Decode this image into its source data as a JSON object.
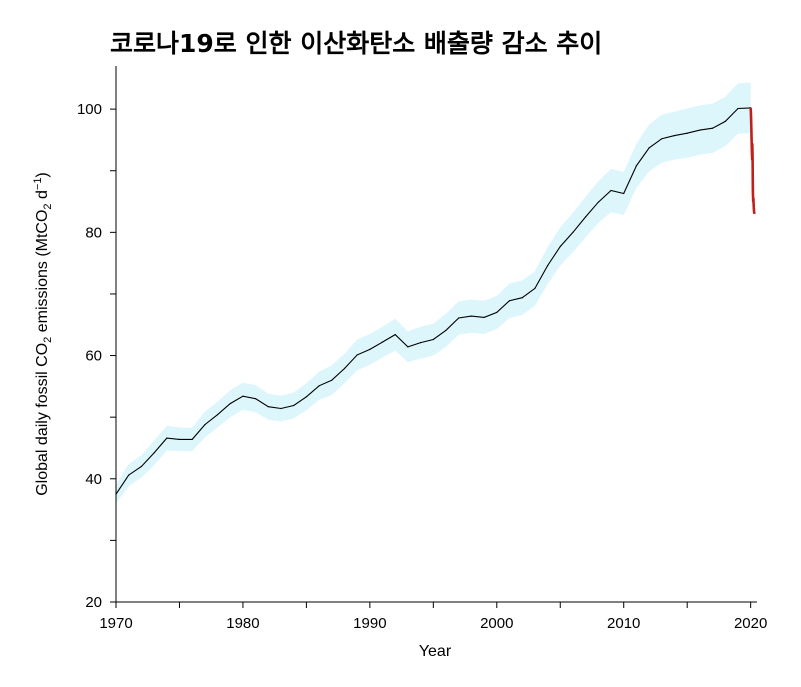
{
  "chart_data": {
    "type": "line",
    "title": "코로나19로 인한 이산화탄소 배출량 감소 추이",
    "xlabel": "Year",
    "ylabel": {
      "prefix": "Global daily fossil CO",
      "sub": "2",
      "mid": " emissions (MtCO",
      "sub2": "2",
      "unit": " d",
      "sup": "−1",
      "end": ")"
    },
    "xlim": [
      1970,
      2020.5
    ],
    "ylim": [
      20,
      107
    ],
    "xticks": [
      1970,
      1980,
      1990,
      2000,
      2010,
      2020
    ],
    "yticks": [
      20,
      40,
      60,
      80,
      100
    ],
    "series": [
      {
        "kind": "annual-line",
        "color": "#000000",
        "x": [
          1970,
          1971,
          1972,
          1973,
          1974,
          1975,
          1976,
          1977,
          1978,
          1979,
          1980,
          1981,
          1982,
          1983,
          1984,
          1985,
          1986,
          1987,
          1988,
          1989,
          1990,
          1991,
          1992,
          1993,
          1994,
          1995,
          1996,
          1997,
          1998,
          1999,
          2000,
          2001,
          2002,
          2003,
          2004,
          2005,
          2006,
          2007,
          2008,
          2009,
          2010,
          2011,
          2012,
          2013,
          2014,
          2015,
          2016,
          2017,
          2018,
          2019,
          2020
        ],
        "y": [
          37.5,
          40.6,
          42.0,
          44.2,
          46.6,
          46.4,
          46.4,
          48.8,
          50.4,
          52.2,
          53.4,
          53.0,
          51.7,
          51.4,
          51.9,
          53.3,
          55.1,
          56.0,
          57.9,
          60.1,
          61.0,
          62.2,
          63.4,
          61.4,
          62.1,
          62.6,
          64.1,
          66.1,
          66.4,
          66.2,
          67.0,
          68.9,
          69.4,
          70.9,
          74.6,
          77.7,
          80.0,
          82.5,
          84.9,
          86.8,
          86.3,
          90.8,
          93.7,
          95.2,
          95.7,
          96.1,
          96.6,
          96.9,
          98.0,
          100.1,
          100.2
        ]
      },
      {
        "kind": "uncertainty-band",
        "color": "#dcf6fc",
        "x": [
          1970,
          1971,
          1972,
          1973,
          1974,
          1975,
          1976,
          1977,
          1978,
          1979,
          1980,
          1981,
          1982,
          1983,
          1984,
          1985,
          1986,
          1987,
          1988,
          1989,
          1990,
          1991,
          1992,
          1993,
          1994,
          1995,
          1996,
          1997,
          1998,
          1999,
          2000,
          2001,
          2002,
          2003,
          2004,
          2005,
          2006,
          2007,
          2008,
          2009,
          2010,
          2011,
          2012,
          2013,
          2014,
          2015,
          2016,
          2017,
          2018,
          2019,
          2020
        ],
        "lower": [
          36.0,
          38.8,
          40.2,
          42.2,
          44.6,
          44.5,
          44.5,
          46.7,
          48.3,
          50.0,
          51.2,
          50.8,
          49.6,
          49.3,
          49.8,
          51.1,
          52.8,
          53.6,
          55.5,
          57.6,
          58.5,
          59.7,
          60.8,
          58.9,
          59.5,
          60.0,
          61.4,
          63.4,
          63.7,
          63.5,
          64.3,
          66.1,
          66.6,
          68.1,
          71.6,
          74.6,
          76.8,
          79.2,
          81.5,
          83.3,
          82.8,
          87.2,
          89.9,
          91.3,
          91.8,
          92.1,
          92.6,
          92.9,
          94.0,
          96.0,
          96.1
        ],
        "upper": [
          39.0,
          42.4,
          43.8,
          46.2,
          48.6,
          48.3,
          48.3,
          50.9,
          52.5,
          54.4,
          55.6,
          55.2,
          53.8,
          53.5,
          54.0,
          55.5,
          57.4,
          58.4,
          60.3,
          62.6,
          63.5,
          64.7,
          66.0,
          63.9,
          64.7,
          65.2,
          66.8,
          68.8,
          69.1,
          68.9,
          69.7,
          71.7,
          72.2,
          73.7,
          77.6,
          80.8,
          83.2,
          85.8,
          88.3,
          90.3,
          89.8,
          94.4,
          97.5,
          99.1,
          99.6,
          100.1,
          100.6,
          100.9,
          102.0,
          104.2,
          104.3
        ]
      },
      {
        "kind": "covid-2020-daily",
        "color": "#c0201c",
        "x": [
          2020.0,
          2020.03,
          2020.06,
          2020.1,
          2020.12,
          2020.13,
          2020.15,
          2020.17,
          2020.18,
          2020.2,
          2020.22,
          2020.25,
          2020.27,
          2020.3
        ],
        "y": [
          100.2,
          99.0,
          96.5,
          93.0,
          91.8,
          94.3,
          92.0,
          88.0,
          86.5,
          85.0,
          85.5,
          84.0,
          83.3,
          83.0
        ]
      }
    ],
    "grid": false,
    "legend": "none"
  }
}
